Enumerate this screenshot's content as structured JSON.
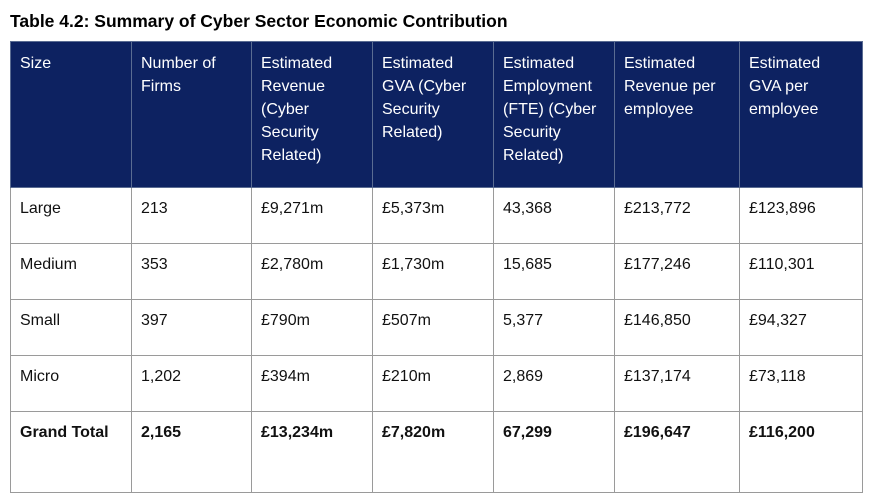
{
  "title": "Table 4.2: Summary of Cyber Sector Economic Contribution",
  "colors": {
    "header_background": "#0d2261",
    "header_text": "#ffffff",
    "border": "#9a9a9a"
  },
  "table": {
    "headers": [
      "Size",
      "Number of Firms",
      "Estimated Revenue (Cyber Security Related)",
      "Estimated GVA (Cyber Security Related)",
      "Estimated Employment (FTE) (Cyber Security Related)",
      "Estimated Revenue per employee",
      "Estimated GVA per employee"
    ],
    "rows": [
      [
        "Large",
        "213",
        "£9,271m",
        "£5,373m",
        "43,368",
        "£213,772",
        "£123,896"
      ],
      [
        "Medium",
        "353",
        "£2,780m",
        "£1,730m",
        "15,685",
        "£177,246",
        "£110,301"
      ],
      [
        "Small",
        "397",
        "£790m",
        "£507m",
        "5,377",
        "£146,850",
        "£94,327"
      ],
      [
        "Micro",
        "1,202",
        "£394m",
        "£210m",
        "2,869",
        "£137,174",
        "£73,118"
      ],
      [
        "Grand Total",
        "2,165",
        "£13,234m",
        "£7,820m",
        "67,299",
        "£196,647",
        "£116,200"
      ]
    ]
  }
}
